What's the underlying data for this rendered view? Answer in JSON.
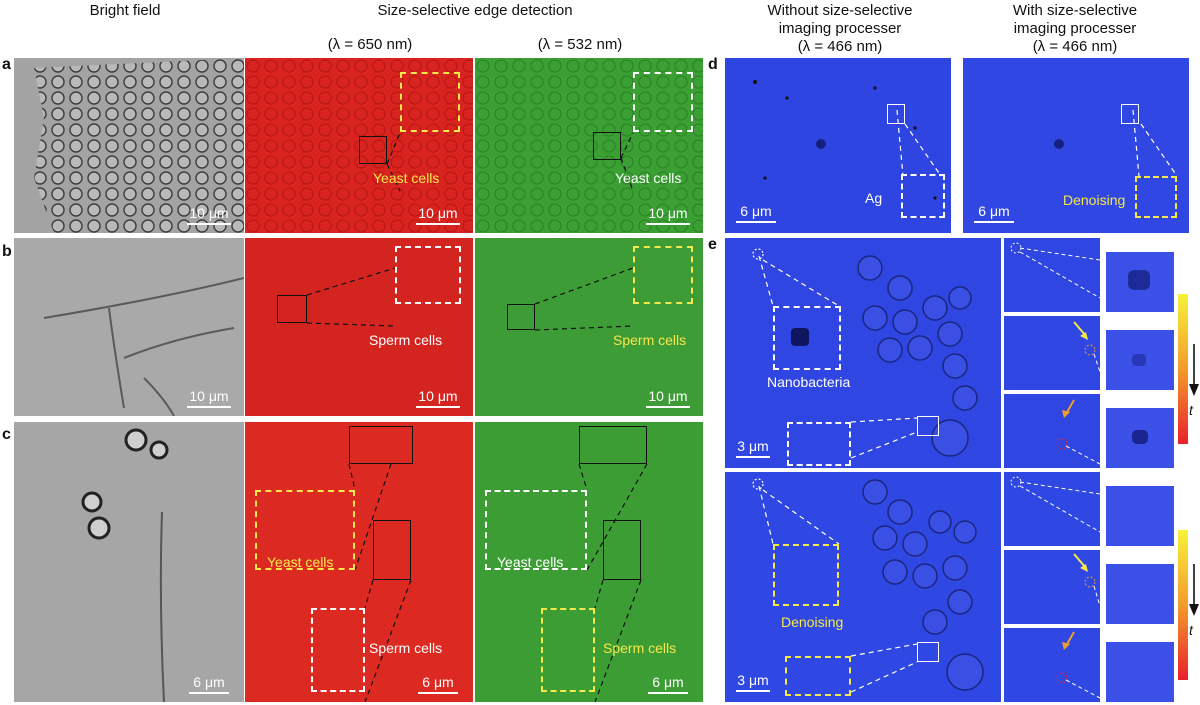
{
  "headers": {
    "bright_field": "Bright field",
    "edge_detection": "Size-selective edge detection",
    "lambda_650": "(λ = 650 nm)",
    "lambda_532": "(λ = 532 nm)",
    "without_line1": "Without size-selective",
    "without_line2": "imaging processer",
    "without_line3": "(λ = 466 nm)",
    "with_line1": "With size-selective",
    "with_line2": "imaging processer",
    "with_line3": "(λ = 466 nm)"
  },
  "panel_letters": {
    "a": "a",
    "b": "b",
    "c": "c",
    "d": "d",
    "e": "e"
  },
  "scales": {
    "s10": "10 μm",
    "s6": "6 μm",
    "s3": "3 μm"
  },
  "labels": {
    "yeast_cells": "Yeast cells",
    "sperm_cells": "Sperm cells",
    "ag": "Ag",
    "denoising": "Denoising",
    "nanobacteria": "Nanobacteria",
    "t": "t"
  },
  "colors": {
    "bright_field": "#9a9a9a",
    "red_channel": "#d8231f",
    "green_channel": "#3aa033",
    "blue_channel": "#2e43e0",
    "label_yellow": "#f7e84b"
  }
}
